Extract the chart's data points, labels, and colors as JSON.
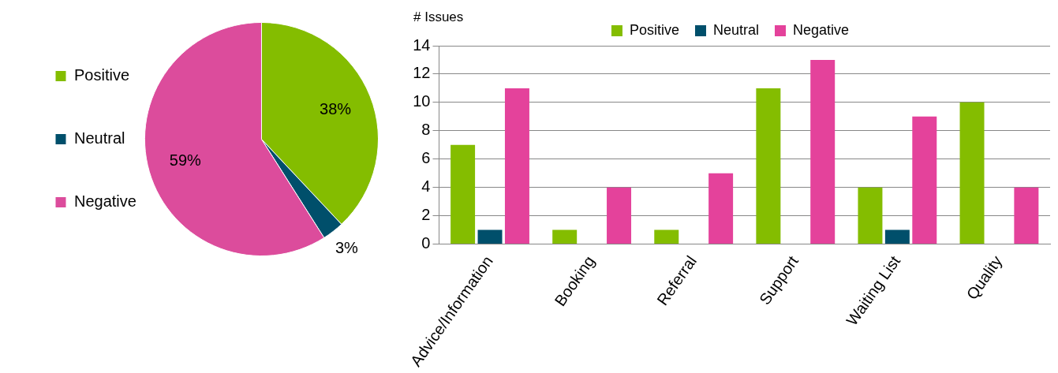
{
  "chart_data": [
    {
      "type": "pie",
      "categories": [
        "Positive",
        "Neutral",
        "Negative"
      ],
      "values": [
        38,
        3,
        59
      ],
      "colors": [
        "#84bd00",
        "#004f6b",
        "#dc4c9c"
      ],
      "value_labels": [
        "38%",
        "3%",
        "59%"
      ],
      "legend": "left"
    },
    {
      "type": "bar",
      "ylabel": "# Issues",
      "categories": [
        "Advice/Information",
        "Booking",
        "Referral",
        "Support",
        "Waiting List",
        "Quality"
      ],
      "series": [
        {
          "name": "Positive",
          "color": "#84bd00",
          "values": [
            7,
            1,
            1,
            11,
            4,
            10
          ]
        },
        {
          "name": "Neutral",
          "color": "#004f6b",
          "values": [
            1,
            0,
            0,
            0,
            1,
            0
          ]
        },
        {
          "name": "Negative",
          "color": "#e4429b",
          "values": [
            11,
            4,
            5,
            13,
            9,
            4
          ]
        }
      ],
      "ylim": [
        0,
        14
      ],
      "yticks": [
        0,
        2,
        4,
        6,
        8,
        10,
        12,
        14
      ],
      "grid": "y",
      "legend": "top"
    }
  ]
}
